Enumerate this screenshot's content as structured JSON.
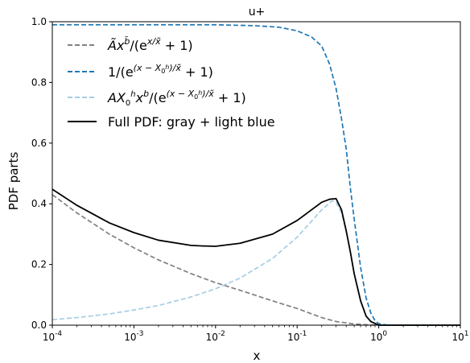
{
  "chart_data": {
    "type": "line",
    "title": "u+",
    "xlabel": "x",
    "ylabel": "PDF parts",
    "xscale": "log",
    "xlim": [
      0.0001,
      10
    ],
    "ylim": [
      0,
      1
    ],
    "grid": false,
    "legend_position": "top-left",
    "x_ticks": [
      {
        "value": 0.0001,
        "base": "10",
        "exp": "-4"
      },
      {
        "value": 0.001,
        "base": "10",
        "exp": "-3"
      },
      {
        "value": 0.01,
        "base": "10",
        "exp": "-2"
      },
      {
        "value": 0.1,
        "base": "10",
        "exp": "-1"
      },
      {
        "value": 1,
        "base": "10",
        "exp": "0"
      },
      {
        "value": 10,
        "base": "10",
        "exp": "1"
      }
    ],
    "y_ticks": [
      "0.0",
      "0.2",
      "0.4",
      "0.6",
      "0.8",
      "1.0"
    ],
    "series": [
      {
        "name": "Ãx^b̃/(e^(x/x̃)+1)",
        "color": "#808080",
        "style": "dashed",
        "points": [
          [
            0.0001,
            0.43
          ],
          [
            0.0002,
            0.37
          ],
          [
            0.0005,
            0.3
          ],
          [
            0.001,
            0.255
          ],
          [
            0.002,
            0.215
          ],
          [
            0.005,
            0.17
          ],
          [
            0.01,
            0.14
          ],
          [
            0.02,
            0.115
          ],
          [
            0.05,
            0.08
          ],
          [
            0.1,
            0.055
          ],
          [
            0.2,
            0.025
          ],
          [
            0.3,
            0.012
          ],
          [
            0.5,
            0.004
          ],
          [
            0.7,
            0.0015
          ],
          [
            1.0,
            0.0
          ],
          [
            10,
            0.0
          ]
        ]
      },
      {
        "name": "1/(e^((x−X0^h)/x̃)+1)",
        "color": "#1f77b4",
        "style": "dashed",
        "points": [
          [
            0.0001,
            0.99
          ],
          [
            0.001,
            0.99
          ],
          [
            0.01,
            0.99
          ],
          [
            0.03,
            0.987
          ],
          [
            0.06,
            0.982
          ],
          [
            0.1,
            0.97
          ],
          [
            0.15,
            0.95
          ],
          [
            0.2,
            0.92
          ],
          [
            0.25,
            0.86
          ],
          [
            0.3,
            0.78
          ],
          [
            0.35,
            0.68
          ],
          [
            0.4,
            0.58
          ],
          [
            0.45,
            0.45
          ],
          [
            0.5,
            0.35
          ],
          [
            0.6,
            0.19
          ],
          [
            0.7,
            0.09
          ],
          [
            0.8,
            0.04
          ],
          [
            0.9,
            0.015
          ],
          [
            1.0,
            0.005
          ],
          [
            1.3,
            0.0
          ],
          [
            10,
            0.0
          ]
        ]
      },
      {
        "name": "AX0^h x^b/(e^((x−X0^h)/x̃)+1)",
        "color": "#a6cee3",
        "style": "dashed",
        "points": [
          [
            0.0001,
            0.018
          ],
          [
            0.0002,
            0.025
          ],
          [
            0.0005,
            0.037
          ],
          [
            0.001,
            0.05
          ],
          [
            0.002,
            0.065
          ],
          [
            0.005,
            0.093
          ],
          [
            0.01,
            0.12
          ],
          [
            0.02,
            0.155
          ],
          [
            0.05,
            0.22
          ],
          [
            0.1,
            0.29
          ],
          [
            0.2,
            0.38
          ],
          [
            0.27,
            0.41
          ],
          [
            0.3,
            0.405
          ],
          [
            0.35,
            0.37
          ],
          [
            0.4,
            0.31
          ],
          [
            0.45,
            0.24
          ],
          [
            0.5,
            0.17
          ],
          [
            0.6,
            0.08
          ],
          [
            0.7,
            0.03
          ],
          [
            0.8,
            0.012
          ],
          [
            1.0,
            0.0
          ],
          [
            10,
            0.0
          ]
        ]
      },
      {
        "name": "Full PDF: gray + light blue",
        "color": "#000000",
        "style": "solid",
        "points": [
          [
            0.0001,
            0.448
          ],
          [
            0.0002,
            0.395
          ],
          [
            0.0005,
            0.337
          ],
          [
            0.001,
            0.305
          ],
          [
            0.002,
            0.28
          ],
          [
            0.005,
            0.263
          ],
          [
            0.007,
            0.261
          ],
          [
            0.01,
            0.26
          ],
          [
            0.02,
            0.27
          ],
          [
            0.05,
            0.3
          ],
          [
            0.1,
            0.345
          ],
          [
            0.2,
            0.405
          ],
          [
            0.25,
            0.415
          ],
          [
            0.3,
            0.417
          ],
          [
            0.35,
            0.38
          ],
          [
            0.4,
            0.31
          ],
          [
            0.45,
            0.24
          ],
          [
            0.5,
            0.17
          ],
          [
            0.6,
            0.08
          ],
          [
            0.7,
            0.03
          ],
          [
            0.8,
            0.012
          ],
          [
            1.0,
            0.0
          ],
          [
            10,
            0.0
          ]
        ]
      }
    ]
  }
}
